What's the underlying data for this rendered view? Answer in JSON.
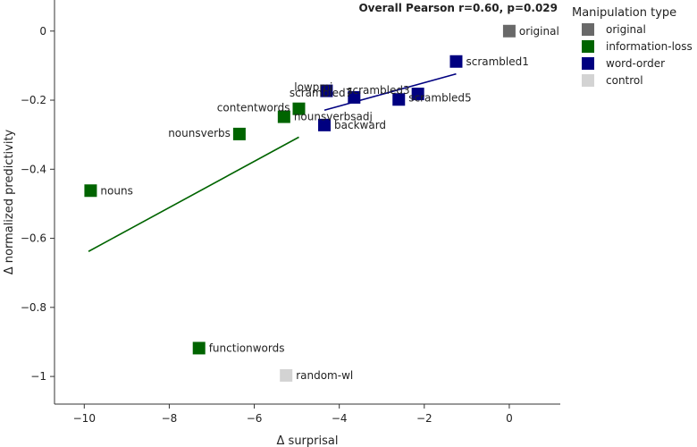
{
  "chart_data": {
    "type": "scatter",
    "title": "",
    "annotation": "Overall Pearson r=0.60, p=0.029",
    "xlabel": "Δ surprisal",
    "ylabel": "Δ normalized predictivity",
    "xlim": [
      -10.7,
      1.2
    ],
    "ylim": [
      -1.08,
      0.09
    ],
    "xticks": [
      -10,
      -8,
      -6,
      -4,
      -2,
      0
    ],
    "yticks": [
      0,
      -0.2,
      -0.4,
      -0.6,
      -0.8,
      -1
    ],
    "xtick_labels": [
      "−10",
      "−8",
      "−6",
      "−4",
      "−2",
      "0"
    ],
    "ytick_labels": [
      "0",
      "−0.2",
      "−0.4",
      "−0.6",
      "−0.8",
      "−1"
    ],
    "grid": false,
    "legend": {
      "title": "Manipulation type",
      "placement": "outside-right",
      "entries": [
        {
          "name": "original",
          "color": "#696969"
        },
        {
          "name": "information-loss",
          "color": "#006400"
        },
        {
          "name": "word-order",
          "color": "#000080"
        },
        {
          "name": "control",
          "color": "#d3d3d3"
        }
      ]
    },
    "points": [
      {
        "label": "original",
        "group": "original",
        "x": 0.0,
        "y": 0.0
      },
      {
        "label": "scrambled1",
        "group": "word-order",
        "x": -1.25,
        "y": -0.088
      },
      {
        "label": "scrambled3",
        "group": "word-order",
        "x": -2.15,
        "y": -0.182
      },
      {
        "label": "scrambled5",
        "group": "word-order",
        "x": -2.6,
        "y": -0.198
      },
      {
        "label": "scrambled7",
        "group": "word-order",
        "x": -3.65,
        "y": -0.192
      },
      {
        "label": "lowpmi",
        "group": "word-order",
        "x": -4.3,
        "y": -0.173
      },
      {
        "label": "backward",
        "group": "word-order",
        "x": -4.35,
        "y": -0.272
      },
      {
        "label": "contentwords",
        "group": "information-loss",
        "x": -4.95,
        "y": -0.225
      },
      {
        "label": "nounsverbsadj",
        "group": "information-loss",
        "x": -5.3,
        "y": -0.248
      },
      {
        "label": "nounsverbs",
        "group": "information-loss",
        "x": -6.35,
        "y": -0.298
      },
      {
        "label": "nouns",
        "group": "information-loss",
        "x": -9.85,
        "y": -0.462
      },
      {
        "label": "functionwords",
        "group": "information-loss",
        "x": -7.3,
        "y": -0.918
      },
      {
        "label": "random-wl",
        "group": "control",
        "x": -5.25,
        "y": -0.997
      }
    ],
    "fit_lines": [
      {
        "group": "information-loss",
        "color": "#006400",
        "x": [
          -9.9,
          -4.95
        ],
        "y": [
          -0.638,
          -0.307
        ]
      },
      {
        "group": "word-order",
        "color": "#000080",
        "x": [
          -4.35,
          -1.25
        ],
        "y": [
          -0.229,
          -0.124
        ]
      }
    ]
  }
}
